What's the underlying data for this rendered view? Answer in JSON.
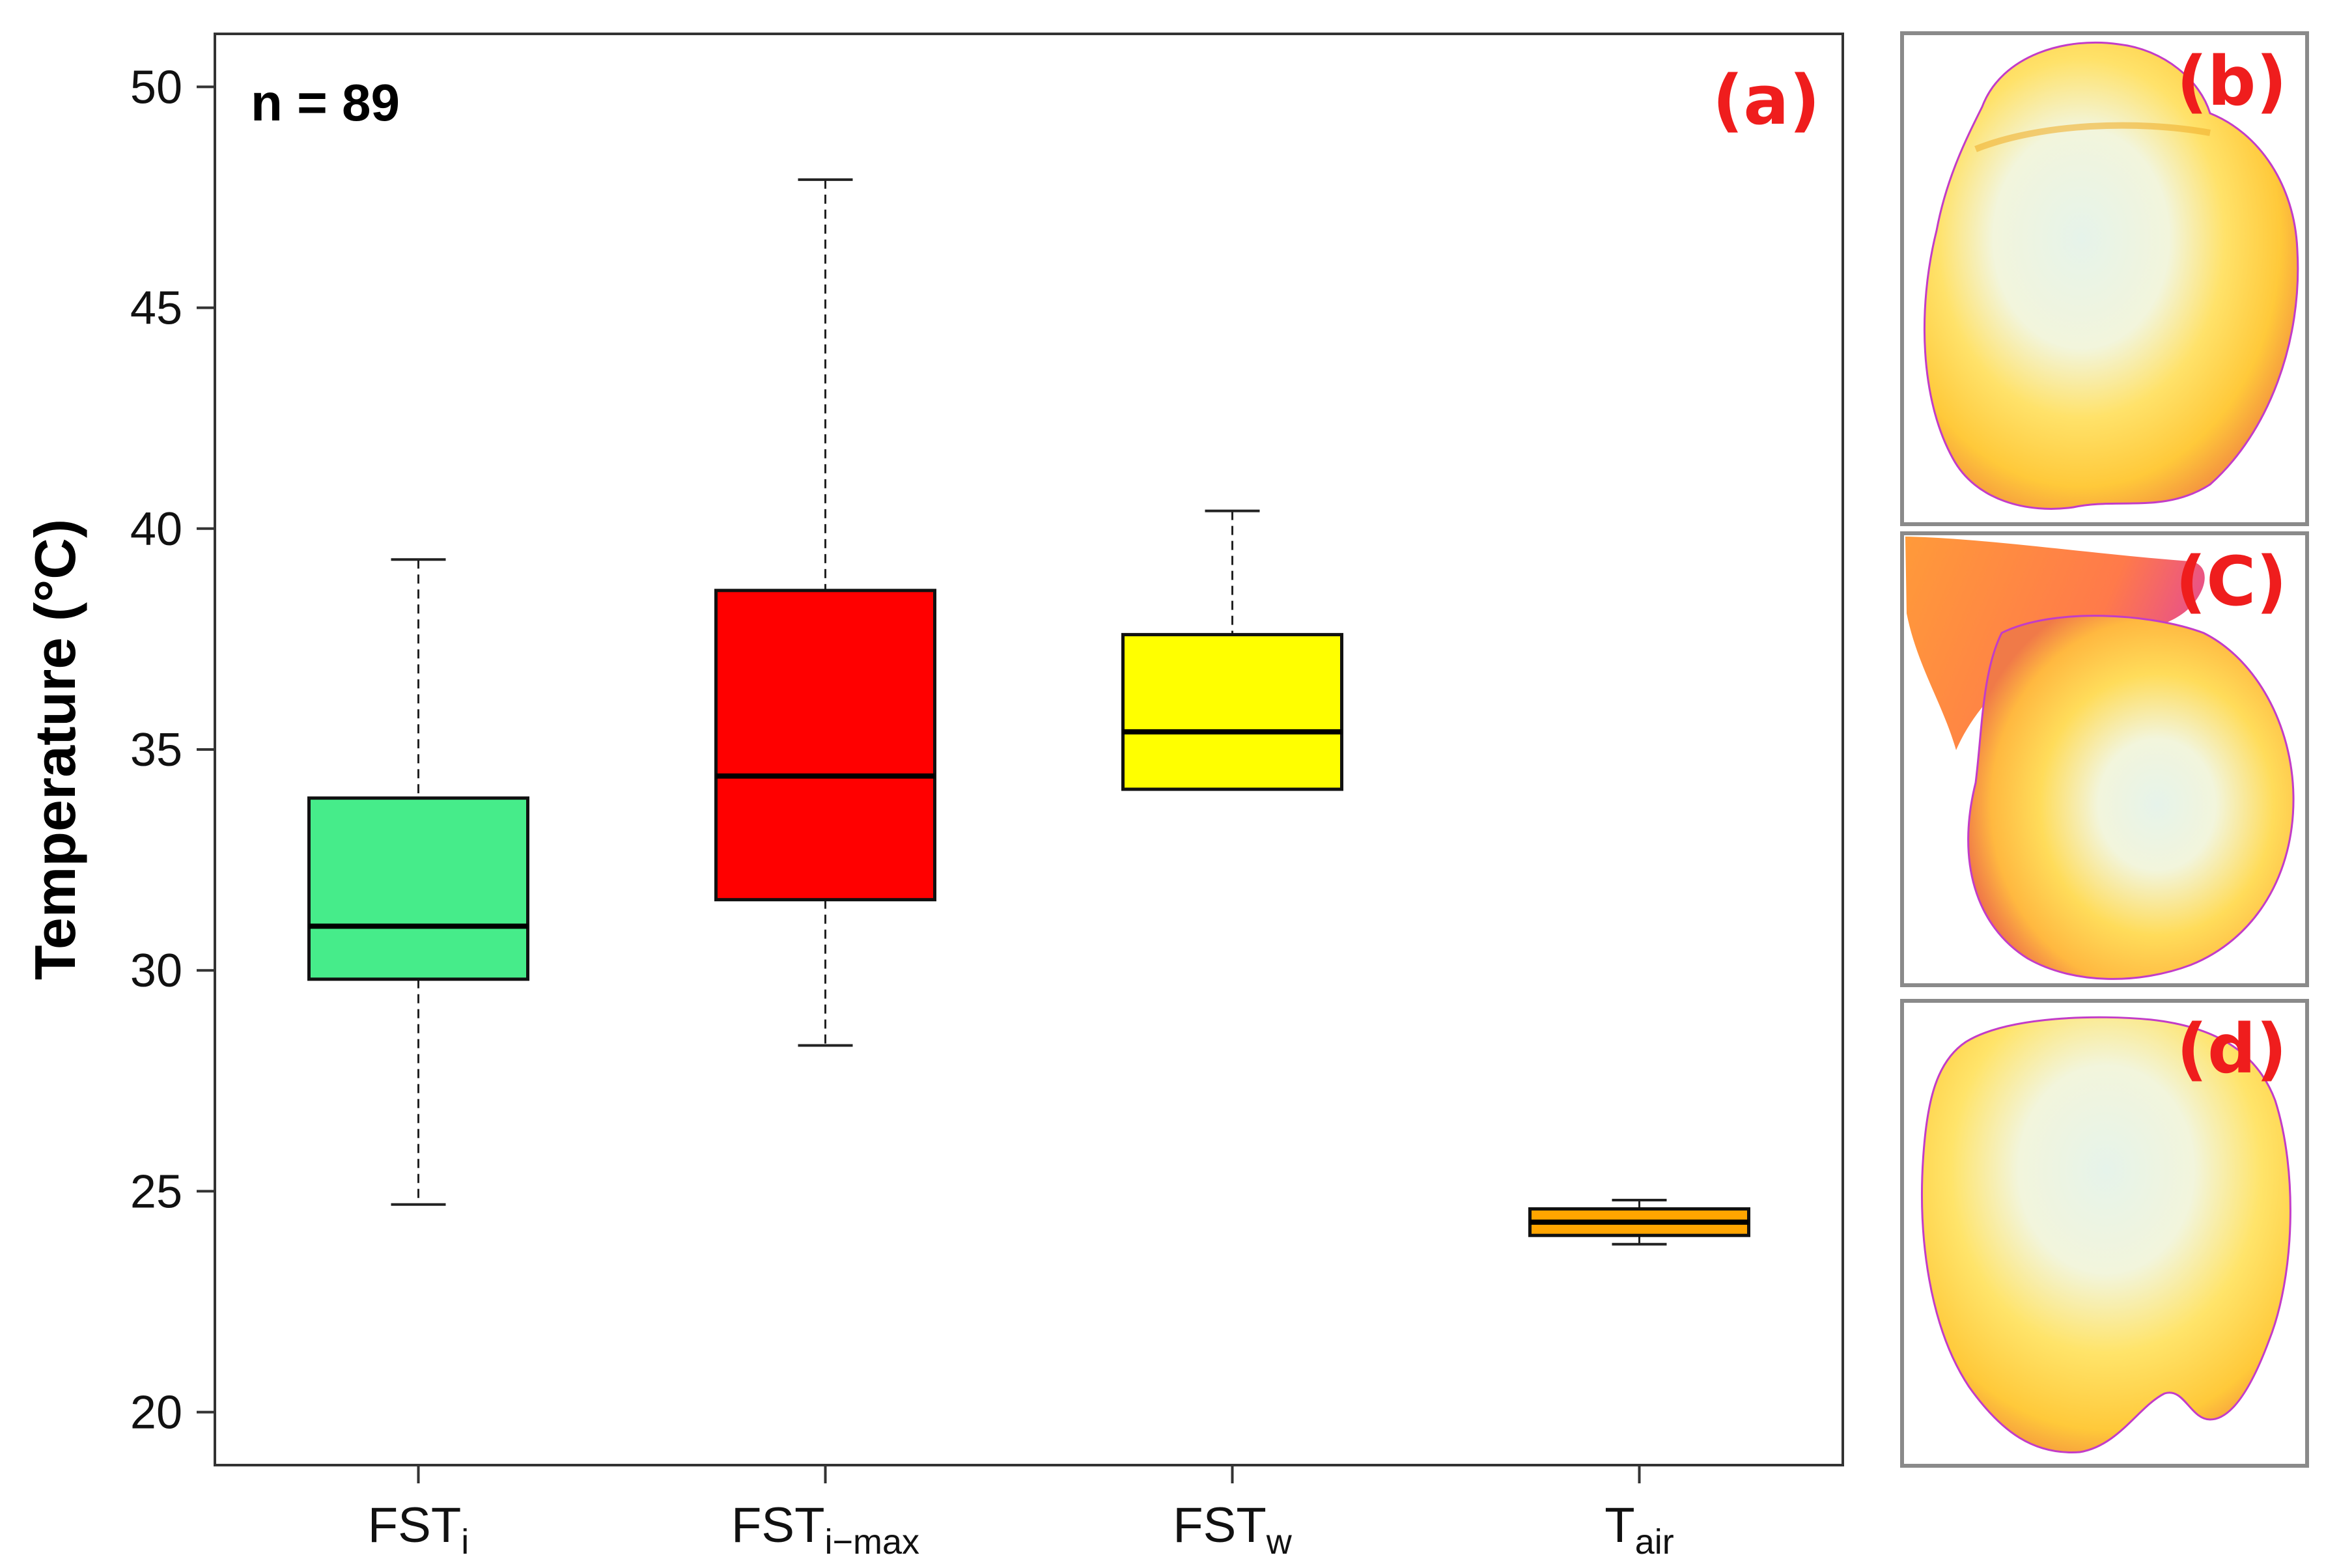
{
  "chart_data": {
    "type": "box",
    "title": "",
    "ylabel": "Temperature (°C)",
    "xlabel": "",
    "ylim": [
      18.8,
      51.2
    ],
    "yticks": [
      20,
      25,
      30,
      35,
      40,
      45,
      50
    ],
    "annotation": "n = 89",
    "panel_label": "(a)",
    "categories": [
      {
        "base": "FST",
        "sub": "i"
      },
      {
        "base": "FST",
        "sub": "i−max"
      },
      {
        "base": "FST",
        "sub": "w"
      },
      {
        "base": "T",
        "sub": "air"
      }
    ],
    "series": [
      {
        "name": "FST_i",
        "min": 24.7,
        "q1": 29.8,
        "median": 31.0,
        "q3": 33.9,
        "max": 39.3,
        "color": "#46ec8a"
      },
      {
        "name": "FST_i-max",
        "min": 28.3,
        "q1": 31.6,
        "median": 34.4,
        "q3": 38.6,
        "max": 47.9,
        "color": "#ff0000"
      },
      {
        "name": "FST_w",
        "min": 34.1,
        "q1": 34.1,
        "median": 35.4,
        "q3": 37.6,
        "max": 40.4,
        "color": "#ffff00"
      },
      {
        "name": "T_air",
        "min": 23.8,
        "q1": 24.0,
        "median": 24.3,
        "q3": 24.6,
        "max": 24.8,
        "color": "#ffa500"
      }
    ],
    "grid": false
  },
  "thermal_panels": [
    {
      "label": "(b)",
      "subject": "thermal image of fruit"
    },
    {
      "label": "(C)",
      "subject": "thermal image of fruit with leaf"
    },
    {
      "label": "(d)",
      "subject": "thermal image of fruit"
    }
  ],
  "colors": {
    "label_red": "#ef1d1d",
    "thermal_hot": "#fff9c8",
    "thermal_warm": "#ffd43a",
    "thermal_cool": "#ff8a3d",
    "thermal_edge": "#c23cc8"
  }
}
